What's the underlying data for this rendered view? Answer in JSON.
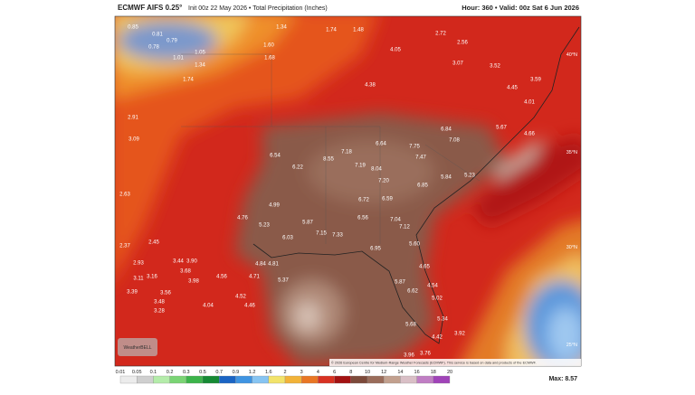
{
  "header": {
    "title": "ECMWF AIFS 0.25°",
    "subtitle": "Init 00z 22 May 2026 • Total Precipitation (Inches)",
    "valid": "Hour: 360 • Valid: 00z Sat 6 Jun 2026"
  },
  "latitude_labels": [
    "40°N",
    "35°N",
    "30°N",
    "25°N"
  ],
  "copyright": "© 2026 European Centre for Medium-Range Weather Forecasts (ECMWF). This service is based on data and products of the ECMWF.",
  "logo": "WeatherBELL",
  "map_labels": [
    "0.85",
    "0.81",
    "0.79",
    "0.78",
    "1.05",
    "1.01",
    "1.34",
    "1.74",
    "1.60",
    "1.68",
    "1.34",
    "1.74",
    "1.48",
    "2.72",
    "2.56",
    "3.07",
    "3.52",
    "3.59",
    "4.45",
    "4.05",
    "4.38",
    "4.01",
    "4.66",
    "5.67",
    "6.84",
    "7.08",
    "6.64",
    "7.75",
    "7.47",
    "7.18",
    "8.55",
    "6.22",
    "6.54",
    "7.19",
    "8.04",
    "7.20",
    "6.72",
    "6.59",
    "6.85",
    "5.84",
    "5.23",
    "6.56",
    "7.04",
    "7.12",
    "5.87",
    "7.15",
    "7.33",
    "6.03",
    "5.23",
    "4.76",
    "4.99",
    "4.84",
    "4.81",
    "5.37",
    "4.71",
    "4.56",
    "3.98",
    "3.68",
    "3.44",
    "3.90",
    "4.52",
    "4.46",
    "4.04",
    "3.56",
    "3.48",
    "3.28",
    "3.39",
    "3.16",
    "3.11",
    "2.93",
    "2.37",
    "2.45",
    "2.63",
    "3.09",
    "2.91",
    "5.60",
    "4.65",
    "4.54",
    "5.02",
    "5.34",
    "5.68",
    "4.42",
    "3.92",
    "3.76",
    "3.96",
    "6.62",
    "5.87",
    "6.95"
  ],
  "colorbar": {
    "labels": [
      "0.01",
      "0.05",
      "0.1",
      "0.2",
      "0.3",
      "0.5",
      "0.7",
      "0.9",
      "1.2",
      "1.6",
      "2",
      "3",
      "4",
      "6",
      "8",
      "10",
      "12",
      "14",
      "16",
      "18",
      "20"
    ],
    "colors": [
      "#ececec",
      "#cfcfcf",
      "#b4ecaa",
      "#7ad474",
      "#3cb44a",
      "#168a34",
      "#1a64c4",
      "#3f94e2",
      "#86c4f2",
      "#f2e36a",
      "#f2b338",
      "#e97624",
      "#d83222",
      "#a31212",
      "#7c4a3a",
      "#9a6c5a",
      "#c2a08e",
      "#d9bfc6",
      "#c07ec4",
      "#a043b8"
    ]
  },
  "max_label": "Max: 8.57"
}
